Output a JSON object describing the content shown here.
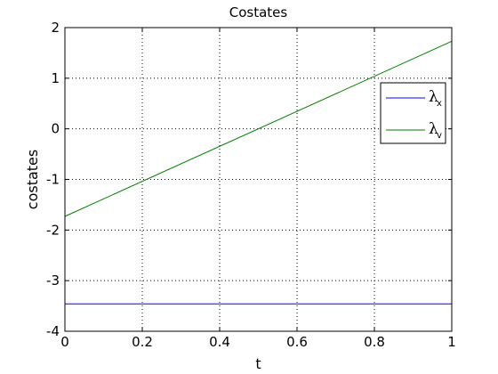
{
  "chart_data": {
    "type": "line",
    "title": "Costates",
    "xlabel": "t",
    "ylabel": "costates",
    "xlim": [
      0,
      1
    ],
    "ylim": [
      -4,
      2
    ],
    "xticks": [
      "0",
      "0.2",
      "0.4",
      "0.6",
      "0.8",
      "1"
    ],
    "yticks": [
      "2",
      "1",
      "0",
      "-1",
      "-2",
      "-3",
      "-4"
    ],
    "grid": true,
    "legend_position": "top-right",
    "series": [
      {
        "name": "λ",
        "subscript": "x",
        "color": "#0000ff",
        "x": [
          0,
          1
        ],
        "y": [
          -3.46,
          -3.46
        ]
      },
      {
        "name": "λ",
        "subscript": "v",
        "color": "#007f00",
        "x": [
          0,
          1
        ],
        "y": [
          -1.73,
          1.73
        ]
      }
    ]
  }
}
